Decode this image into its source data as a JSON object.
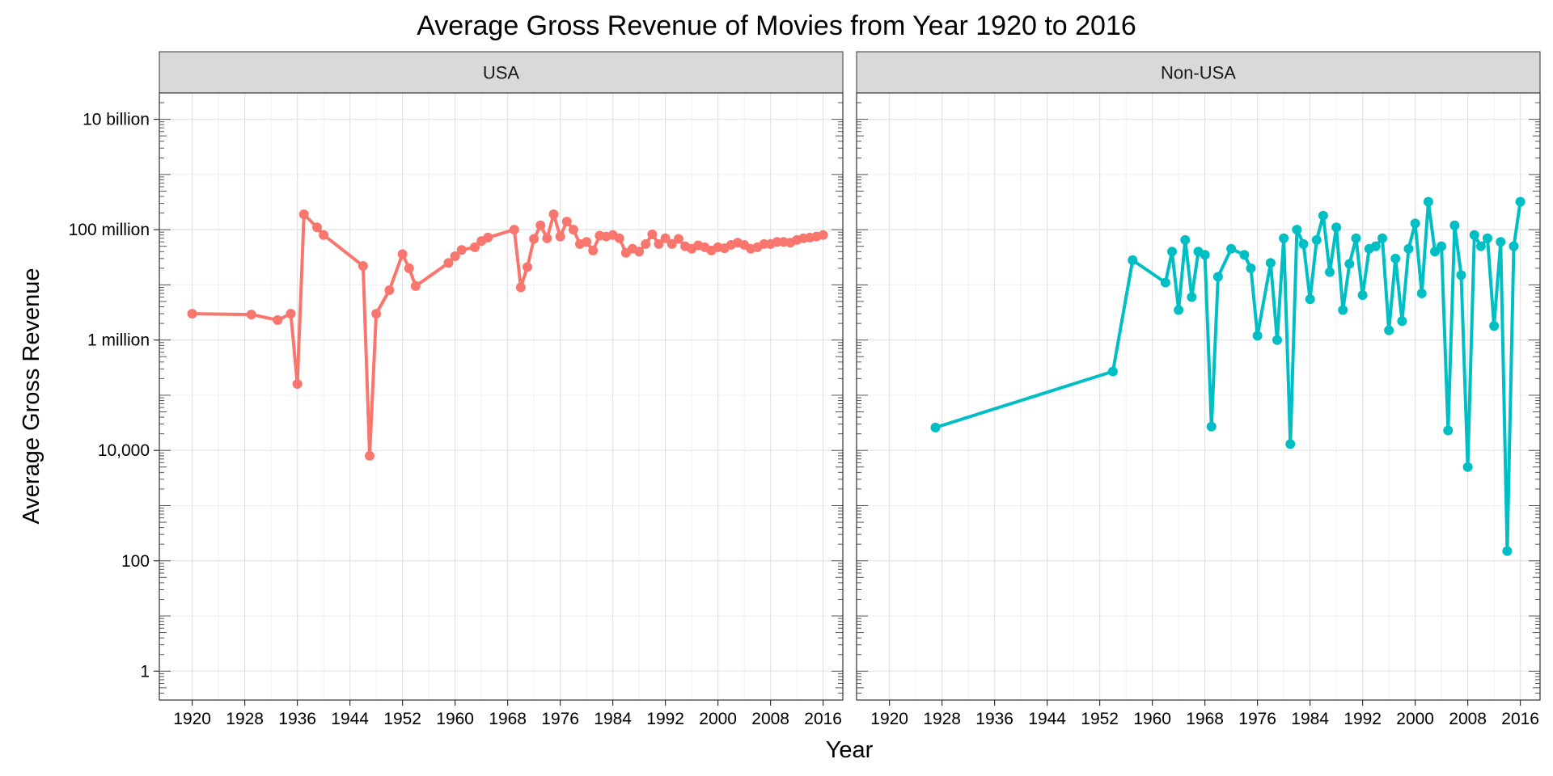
{
  "chart_data": {
    "type": "line",
    "title": "Average Gross Revenue of Movies from Year 1920 to 2016",
    "xlabel": "Year",
    "ylabel": "Average Gross Revenue",
    "y_scale": "log10",
    "ylim": [
      0.3,
      30000000000
    ],
    "xlim": [
      1915,
      2019
    ],
    "x_ticks": [
      1920,
      1928,
      1936,
      1944,
      1952,
      1960,
      1968,
      1976,
      1984,
      1992,
      2000,
      2008,
      2016
    ],
    "x_tick_labels": [
      "1920",
      "1928",
      "1936",
      "1944",
      "1952",
      "1960",
      "1968",
      "1976",
      "1984",
      "1992",
      "2000",
      "2008",
      "2016"
    ],
    "y_ticks": [
      1,
      100,
      10000,
      1000000,
      100000000,
      10000000000
    ],
    "y_tick_labels": [
      "1",
      "100",
      "10,000",
      "1 million",
      "100 million",
      "10 billion"
    ],
    "grid": true,
    "legend": "none",
    "facets": [
      {
        "label": "USA",
        "color": "#F8766D",
        "x": [
          1920,
          1929,
          1933,
          1935,
          1936,
          1937,
          1939,
          1940,
          1946,
          1947,
          1948,
          1950,
          1952,
          1953,
          1954,
          1959,
          1960,
          1961,
          1963,
          1964,
          1965,
          1969,
          1970,
          1971,
          1972,
          1973,
          1974,
          1975,
          1976,
          1977,
          1978,
          1979,
          1980,
          1981,
          1982,
          1983,
          1984,
          1985,
          1986,
          1987,
          1988,
          1989,
          1990,
          1991,
          1992,
          1993,
          1994,
          1995,
          1996,
          1997,
          1998,
          1999,
          2000,
          2001,
          2002,
          2003,
          2004,
          2005,
          2006,
          2007,
          2008,
          2009,
          2010,
          2011,
          2012,
          2013,
          2014,
          2015,
          2016
        ],
        "values": [
          3000000,
          2900000,
          2300000,
          3000000,
          160000,
          190000000,
          110000000,
          80000000,
          22000000,
          8000,
          3000000,
          8000000,
          36000000,
          20000000,
          9500000,
          25000000,
          33000000,
          43000000,
          48000000,
          62000000,
          72000000,
          100000000,
          9000000,
          21000000,
          68000000,
          120000000,
          70000000,
          190000000,
          75000000,
          140000000,
          100000000,
          55000000,
          60000000,
          42000000,
          78000000,
          75000000,
          80000000,
          70000000,
          38000000,
          45000000,
          40000000,
          55000000,
          82000000,
          55000000,
          70000000,
          55000000,
          68000000,
          50000000,
          45000000,
          52000000,
          48000000,
          42000000,
          48000000,
          46000000,
          53000000,
          58000000,
          53000000,
          45000000,
          48000000,
          55000000,
          55000000,
          60000000,
          60000000,
          58000000,
          65000000,
          70000000,
          72000000,
          75000000,
          80000000
        ]
      },
      {
        "label": "Non-USA",
        "color": "#00BFC4",
        "x": [
          1927,
          1954,
          1957,
          1962,
          1963,
          1964,
          1965,
          1966,
          1967,
          1968,
          1969,
          1970,
          1972,
          1974,
          1975,
          1976,
          1978,
          1979,
          1980,
          1981,
          1982,
          1983,
          1984,
          1985,
          1986,
          1987,
          1988,
          1989,
          1990,
          1991,
          1992,
          1993,
          1994,
          1995,
          1996,
          1997,
          1998,
          1999,
          2000,
          2001,
          2002,
          2003,
          2004,
          2005,
          2006,
          2007,
          2008,
          2009,
          2010,
          2011,
          2012,
          2013,
          2014,
          2015,
          2016
        ],
        "values": [
          26000,
          270000,
          28000000,
          11000000,
          40000000,
          3500000,
          65000000,
          6000000,
          40000000,
          35000000,
          27000,
          14000000,
          45000000,
          35000000,
          20000000,
          1200000,
          25000000,
          1000000,
          70000000,
          13000,
          100000000,
          55000000,
          5500000,
          65000000,
          180000000,
          17000000,
          110000000,
          3500000,
          24000000,
          70000000,
          6500000,
          45000000,
          50000000,
          70000000,
          1500000,
          30000000,
          2200000,
          45000000,
          130000000,
          7000000,
          320000000,
          40000000,
          50000000,
          23000,
          120000000,
          15000000,
          5000,
          80000000,
          50000000,
          70000000,
          1800000,
          60000000,
          150,
          50000000,
          320000000
        ]
      }
    ]
  }
}
